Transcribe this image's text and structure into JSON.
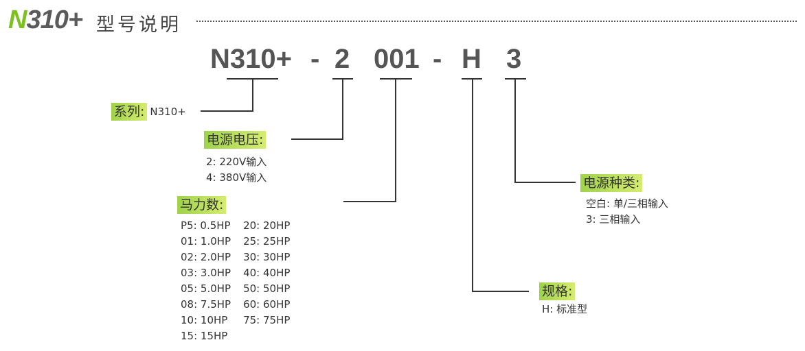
{
  "header": {
    "model_prefix": "N",
    "model_rest": "310+",
    "title": "型号说明"
  },
  "code": {
    "series": "N310+",
    "dash1": "-",
    "voltage": "2",
    "hp": "001",
    "dash2": "-",
    "spec": "H",
    "phase": "3"
  },
  "series": {
    "label": "系列:",
    "value": "N310+"
  },
  "voltage": {
    "label": "电源电压:",
    "items": [
      "2: 220V输入",
      "4: 380V输入"
    ]
  },
  "horsepower": {
    "label": "马力数:",
    "col1": [
      "P5: 0.5HP",
      "01: 1.0HP",
      "02: 2.0HP",
      "03: 3.0HP",
      "05: 5.0HP",
      "08: 7.5HP",
      "10: 10HP",
      "15: 15HP"
    ],
    "col2": [
      "20: 20HP",
      "25: 25HP",
      "30: 30HP",
      "40: 40HP",
      "50: 50HP",
      "60: 60HP",
      "75: 75HP"
    ]
  },
  "power_type": {
    "label": "电源种类:",
    "items": [
      "空白: 单/三相输入",
      "3: 三相输入"
    ]
  },
  "spec": {
    "label": "规格:",
    "items": [
      "H: 标准型"
    ]
  },
  "colors": {
    "accent": "#7dc11f",
    "label_bg_start": "#9fd24a",
    "label_bg_end": "#d6ec70",
    "text": "#555555"
  }
}
